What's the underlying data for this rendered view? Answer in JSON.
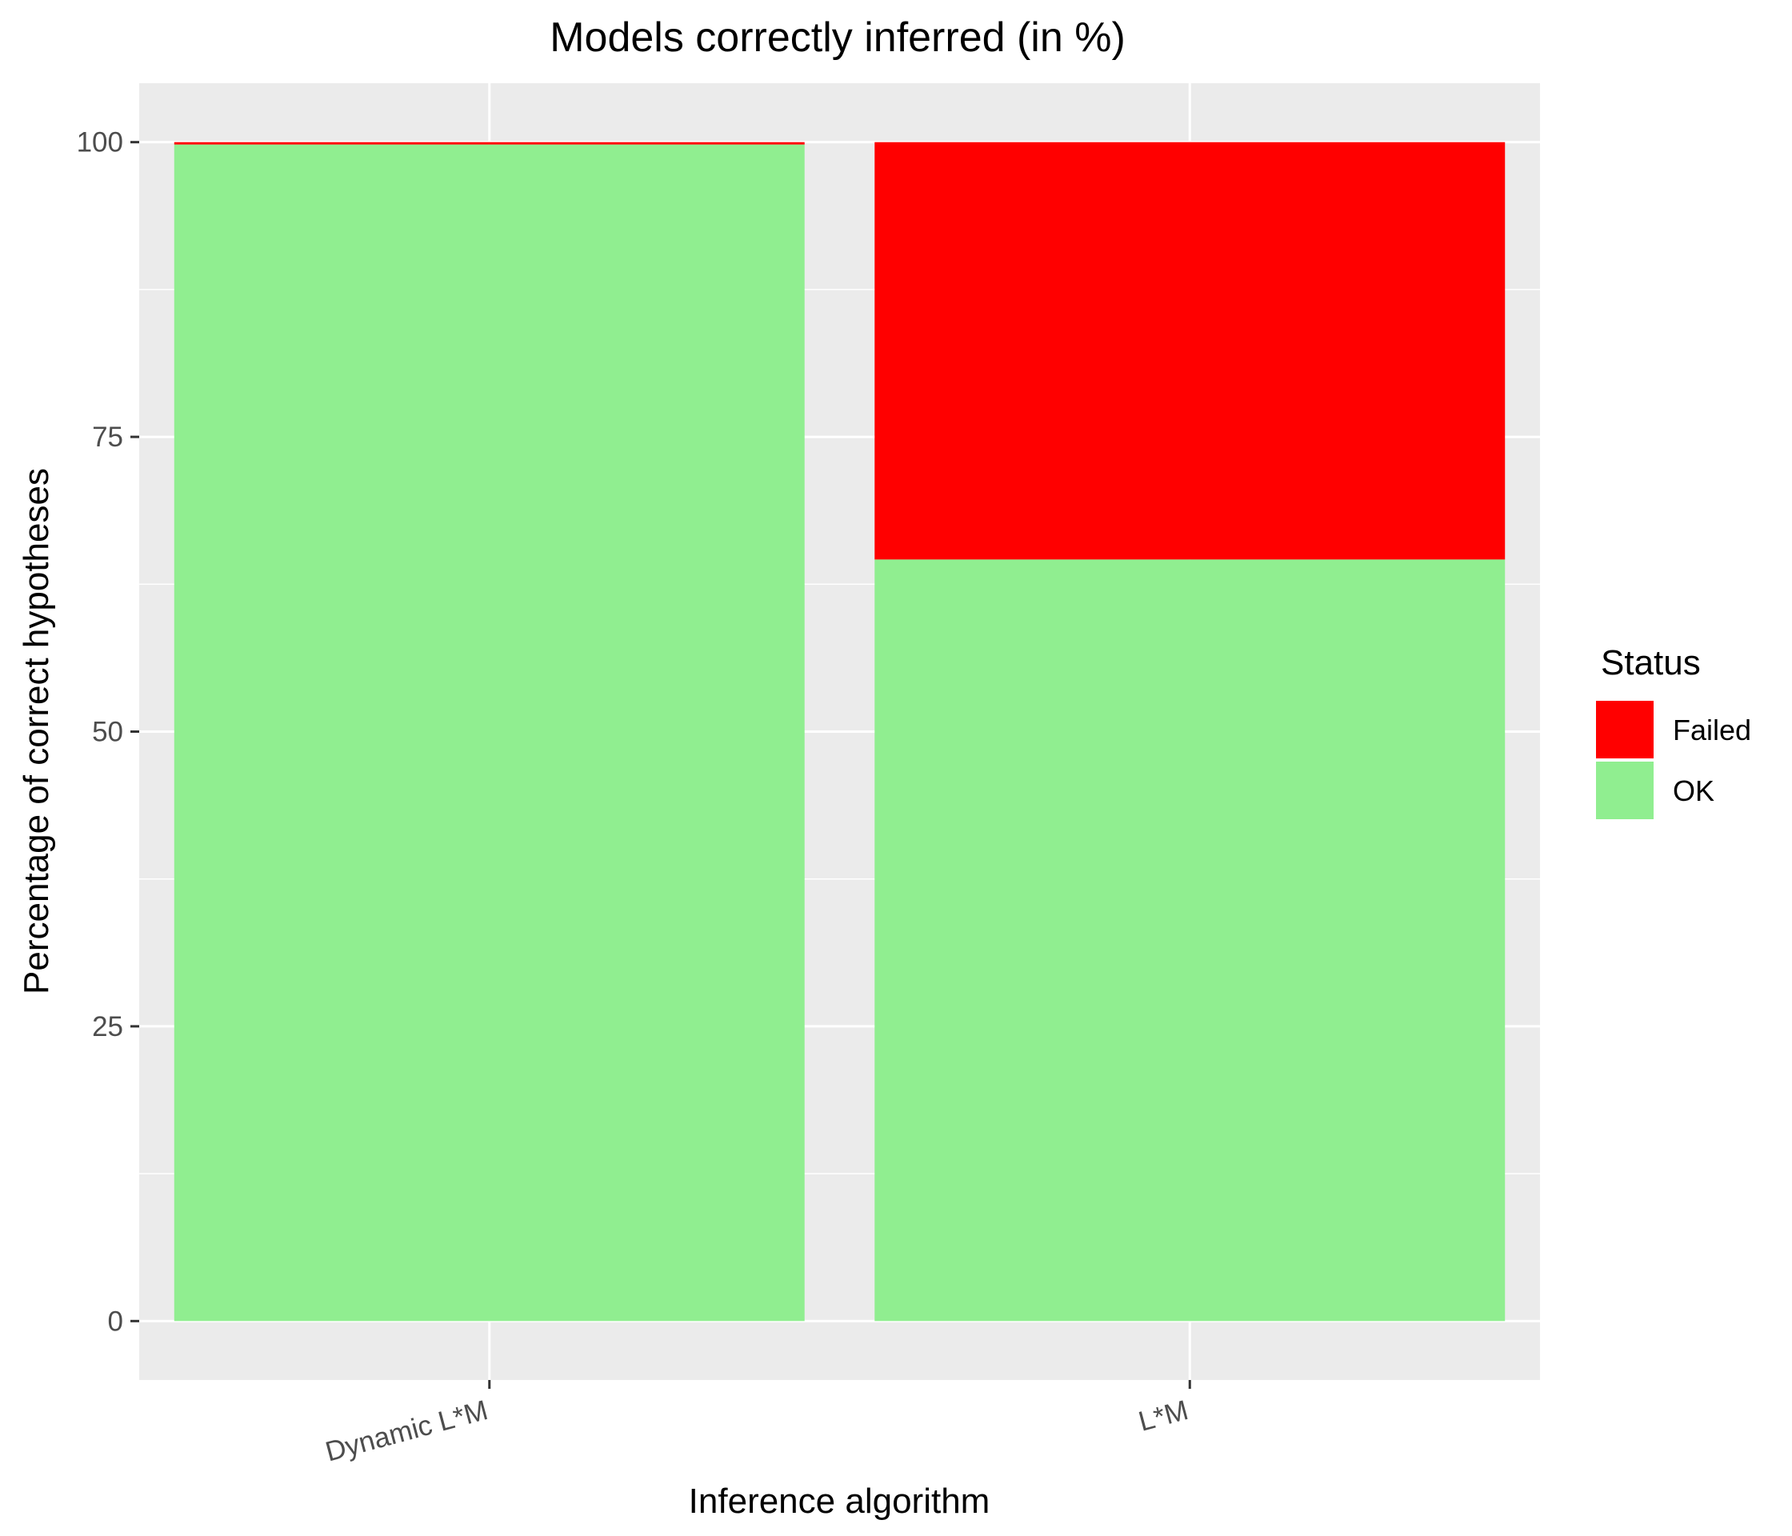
{
  "chart_data": {
    "type": "bar",
    "stacked": true,
    "title": "Models correctly inferred (in %)",
    "xlabel": "Inference algorithm",
    "ylabel": "Percentage of correct hypotheses",
    "categories": [
      "Dynamic L*M",
      "L*M"
    ],
    "series": [
      {
        "name": "OK",
        "color": "#90EE90",
        "values": [
          99.8,
          64.6
        ]
      },
      {
        "name": "Failed",
        "color": "#FF0000",
        "values": [
          0.2,
          35.4
        ]
      }
    ],
    "ylim": [
      -5,
      105
    ],
    "yticks": [
      0,
      25,
      50,
      75,
      100
    ],
    "ytick_labels": [
      "0",
      "25",
      "50",
      "75",
      "100"
    ],
    "grid": true,
    "panel_background": "#EBEBEB",
    "legend": {
      "title": "Status",
      "placement": "right",
      "entries": [
        {
          "label": "Failed",
          "color": "#FF0000"
        },
        {
          "label": "OK",
          "color": "#90EE90"
        }
      ]
    }
  }
}
